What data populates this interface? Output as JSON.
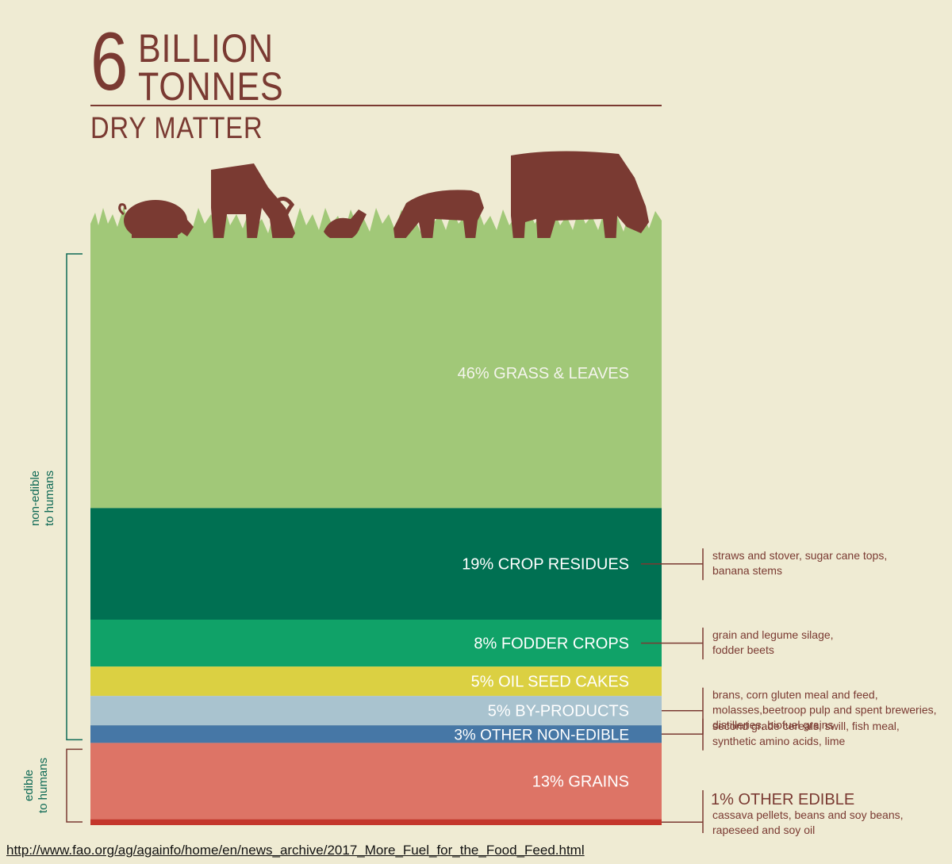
{
  "header": {
    "number": "6",
    "word1": "BILLION",
    "word2": "TONNES",
    "subtitle": "DRY MATTER"
  },
  "groups": {
    "non_edible_line1": "non-edible",
    "non_edible_line2": "to humans",
    "edible_line1": "edible",
    "edible_line2": "to humans"
  },
  "chart_data": {
    "type": "stacked-bar",
    "total_label": "6 BILLION TONNES DRY MATTER",
    "series": [
      {
        "name": "GRASS & LEAVES",
        "value": 46,
        "label": "46% GRASS & LEAVES",
        "color": "#a1c878",
        "text_color": "#f4f4ec",
        "group": "non-edible"
      },
      {
        "name": "CROP RESIDUES",
        "value": 19,
        "label": "19% CROP RESIDUES",
        "color": "#007052",
        "text_color": "#ffffff",
        "group": "non-edible",
        "note": [
          "straws and stover, sugar cane tops,",
          "banana stems"
        ]
      },
      {
        "name": "FODDER CROPS",
        "value": 8,
        "label": "8% FODDER CROPS",
        "color": "#10a268",
        "text_color": "#ffffff",
        "group": "non-edible",
        "note": [
          "grain and legume silage,",
          "fodder beets"
        ]
      },
      {
        "name": "OIL SEED CAKES",
        "value": 5,
        "label": "5% OIL SEED CAKES",
        "color": "#dbd042",
        "text_color": "#ffffff",
        "group": "non-edible"
      },
      {
        "name": "BY-PRODUCTS",
        "value": 5,
        "label": "5% BY-PRODUCTS",
        "color": "#a9c3cf",
        "text_color": "#ffffff",
        "group": "non-edible",
        "note": [
          "brans, corn gluten meal and feed,",
          "molasses,beetroop pulp and spent breweries,",
          "distilleries, biofuel grains"
        ]
      },
      {
        "name": "OTHER NON-EDIBLE",
        "value": 3,
        "label": "3% OTHER NON-EDIBLE",
        "color": "#4677a6",
        "text_color": "#ffffff",
        "group": "non-edible",
        "note": [
          "second grade cereals, swill, fish meal,",
          "synthetic amino acids, lime"
        ]
      },
      {
        "name": "GRAINS",
        "value": 13,
        "label": "13% GRAINS",
        "color": "#dd7466",
        "text_color": "#ffffff",
        "group": "edible"
      },
      {
        "name": "OTHER EDIBLE",
        "value": 1,
        "label": "1% OTHER EDIBLE",
        "color": "#c4372c",
        "text_color": "#7a3a32",
        "group": "edible",
        "note": [
          "cassava pellets, beans and soy beans,",
          "rapeseed and soy oil"
        ]
      }
    ]
  },
  "source_url": "http://www.fao.org/ag/againfo/home/en/news_archive/2017_More_Fuel_for_the_Food_Feed.html"
}
